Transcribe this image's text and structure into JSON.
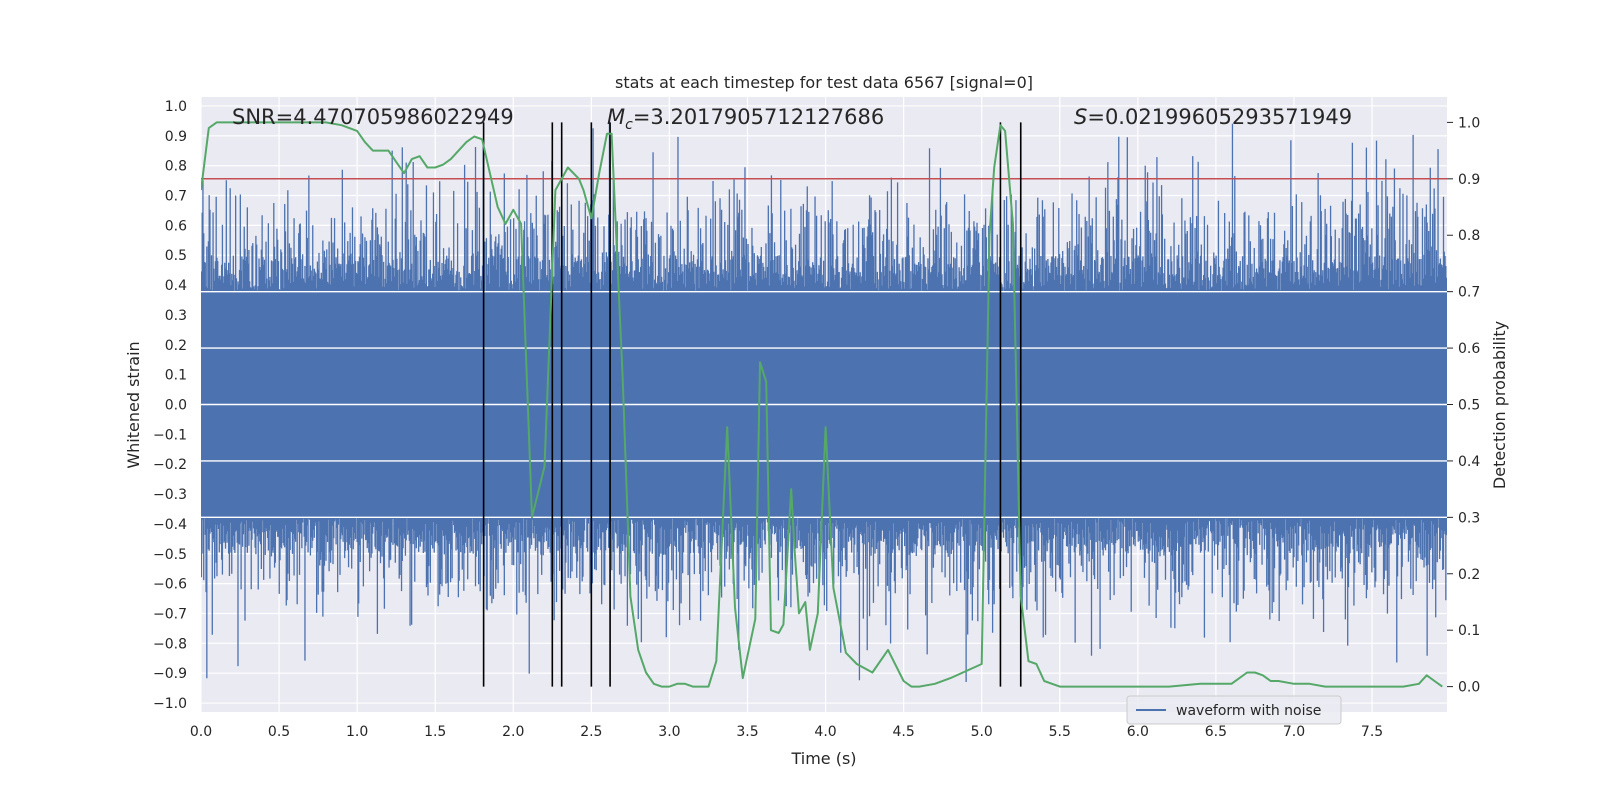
{
  "chart_data": {
    "type": "line",
    "title": "stats at each timestep for test data 6567 [signal=0]",
    "xlabel": "Time (s)",
    "ylabel": "Whitened strain",
    "y2label": "Detection probability",
    "xlim": [
      0.0,
      7.98
    ],
    "ylim": [
      -1.03,
      1.03
    ],
    "y2lim": [
      -0.045,
      1.045
    ],
    "x_ticks": [
      "0.0",
      "0.5",
      "1.0",
      "1.5",
      "2.0",
      "2.5",
      "3.0",
      "3.5",
      "4.0",
      "4.5",
      "5.0",
      "5.5",
      "6.0",
      "6.5",
      "7.0",
      "7.5"
    ],
    "y_ticks": [
      "1.0",
      "0.9",
      "0.8",
      "0.7",
      "0.6",
      "0.5",
      "0.4",
      "0.3",
      "0.2",
      "0.1",
      "0.0",
      "−0.1",
      "−0.2",
      "−0.3",
      "−0.4",
      "−0.5",
      "−0.6",
      "−0.7",
      "−0.8",
      "−0.9",
      "−1.0"
    ],
    "y2_ticks": [
      "1.0",
      "0.9",
      "0.8",
      "0.7",
      "0.6",
      "0.5",
      "0.4",
      "0.3",
      "0.2",
      "0.1",
      "0.0"
    ],
    "annotations": {
      "snr": "SNR=4.470705986022949",
      "mc_symbol": "M",
      "mc_subscript": "c",
      "mc_value": "=3.2017905712127686",
      "s_symbol": "S",
      "s_value": "=0.02199605293571949"
    },
    "legend": {
      "label": "waveform with noise",
      "placement": "lower-right"
    },
    "threshold": {
      "value": 0.9,
      "axis": "y2",
      "color": "#c44e52"
    },
    "vertical_markers": [
      1.81,
      2.25,
      2.31,
      2.5,
      2.62,
      5.12,
      5.25
    ],
    "marker_range_y2": [
      0.0,
      1.0
    ],
    "waveform": {
      "name": "waveform with noise",
      "color": "#4c72b0",
      "sample_count": 1600,
      "typical_envelope": 0.38,
      "max_abs": 0.985
    },
    "detection_probability": {
      "name": "detection probability",
      "color": "#55a868",
      "x": [
        0.0,
        0.05,
        0.1,
        0.2,
        0.4,
        0.6,
        0.8,
        0.9,
        1.0,
        1.05,
        1.1,
        1.2,
        1.25,
        1.3,
        1.35,
        1.4,
        1.45,
        1.5,
        1.55,
        1.6,
        1.7,
        1.75,
        1.8,
        1.85,
        1.9,
        1.95,
        2.0,
        2.05,
        2.12,
        2.2,
        2.27,
        2.35,
        2.42,
        2.45,
        2.5,
        2.55,
        2.6,
        2.63,
        2.7,
        2.75,
        2.8,
        2.85,
        2.9,
        2.95,
        3.0,
        3.05,
        3.1,
        3.15,
        3.2,
        3.25,
        3.3,
        3.37,
        3.42,
        3.47,
        3.55,
        3.58,
        3.62,
        3.65,
        3.7,
        3.73,
        3.78,
        3.8,
        3.83,
        3.87,
        3.9,
        3.95,
        4.0,
        4.05,
        4.13,
        4.2,
        4.3,
        4.4,
        4.5,
        4.55,
        4.6,
        4.7,
        4.8,
        5.0,
        5.05,
        5.08,
        5.12,
        5.15,
        5.2,
        5.25,
        5.3,
        5.35,
        5.4,
        5.45,
        5.5,
        5.6,
        5.8,
        6.0,
        6.2,
        6.4,
        6.5,
        6.6,
        6.7,
        6.75,
        6.8,
        6.85,
        6.9,
        7.0,
        7.1,
        7.2,
        7.3,
        7.5,
        7.7,
        7.8,
        7.85,
        7.9,
        7.95
      ],
      "y": [
        0.88,
        0.99,
        1.0,
        1.0,
        1.0,
        1.0,
        1.0,
        0.995,
        0.985,
        0.965,
        0.95,
        0.95,
        0.93,
        0.91,
        0.935,
        0.94,
        0.92,
        0.92,
        0.925,
        0.935,
        0.965,
        0.975,
        0.97,
        0.91,
        0.85,
        0.82,
        0.845,
        0.82,
        0.3,
        0.39,
        0.88,
        0.92,
        0.9,
        0.88,
        0.83,
        0.91,
        0.98,
        0.98,
        0.55,
        0.16,
        0.065,
        0.025,
        0.005,
        0.0,
        0.0,
        0.005,
        0.005,
        0.0,
        0.0,
        0.0,
        0.045,
        0.46,
        0.14,
        0.015,
        0.12,
        0.575,
        0.54,
        0.1,
        0.095,
        0.11,
        0.35,
        0.25,
        0.13,
        0.15,
        0.065,
        0.13,
        0.46,
        0.175,
        0.06,
        0.04,
        0.025,
        0.065,
        0.01,
        0.0,
        0.0,
        0.005,
        0.015,
        0.04,
        0.8,
        0.92,
        0.995,
        0.985,
        0.82,
        0.16,
        0.045,
        0.04,
        0.01,
        0.005,
        0.0,
        0.0,
        0.0,
        0.0,
        0.0,
        0.005,
        0.005,
        0.005,
        0.025,
        0.025,
        0.02,
        0.01,
        0.01,
        0.005,
        0.005,
        0.0,
        0.0,
        0.0,
        0.0,
        0.005,
        0.02,
        0.01,
        0.0
      ]
    }
  }
}
